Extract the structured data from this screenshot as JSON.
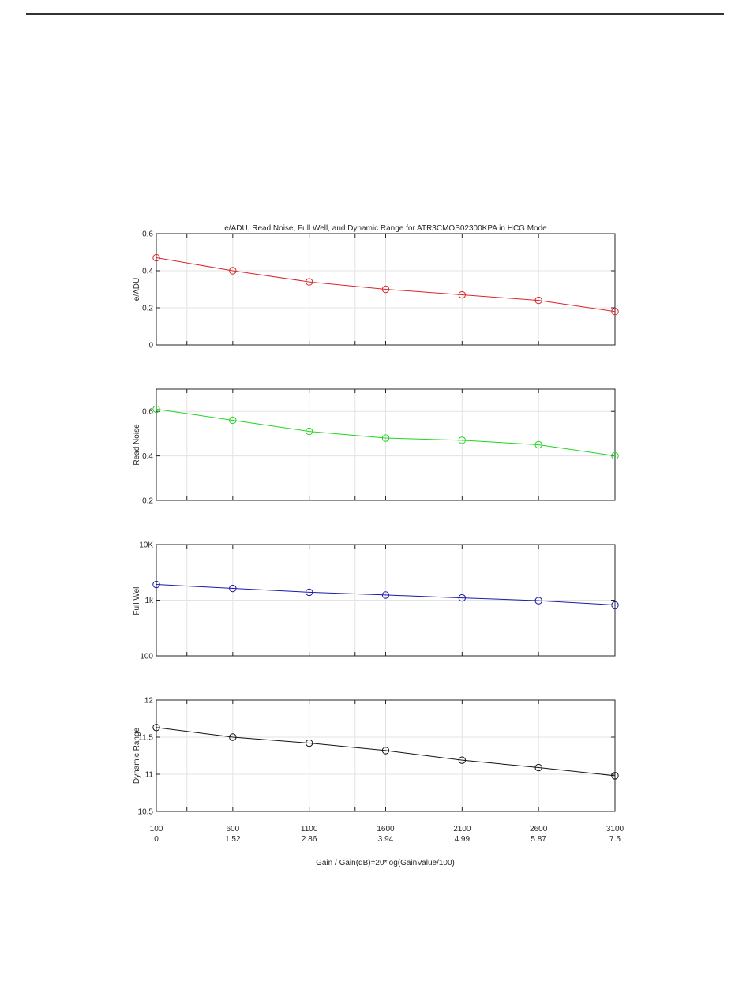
{
  "chart_data": {
    "type": "line",
    "title": "e/ADU, Read Noise, Full Well, and Dynamic Range for ATR3CMOS02300KPA in HCG Mode",
    "xlabel": "Gain / Gain(dB)=20*log(GainValue/100)",
    "x": [
      100,
      600,
      1100,
      1600,
      2100,
      2600,
      3100
    ],
    "x_tick_labels_gain": [
      "100",
      "600",
      "1100",
      "1600",
      "2100",
      "2600",
      "3100"
    ],
    "x_tick_labels_db": [
      "0",
      "1.52",
      "2.86",
      "3.94",
      "4.99",
      "5.87",
      "7.5"
    ],
    "grid": true,
    "panels": [
      {
        "ylabel": "e/ADU",
        "color": "#d9252a",
        "scale": "linear",
        "ylim": [
          0,
          0.6
        ],
        "yticks": [
          0,
          0.2,
          0.4,
          0.6
        ],
        "ytick_labels": [
          "0",
          "0.2",
          "0.4",
          "0.6"
        ],
        "values": [
          0.47,
          0.4,
          0.34,
          0.3,
          0.27,
          0.24,
          0.18
        ]
      },
      {
        "ylabel": "Read Noise",
        "color": "#1fd61f",
        "scale": "linear",
        "ylim": [
          0.2,
          0.7
        ],
        "yticks": [
          0.2,
          0.4,
          0.6
        ],
        "ytick_labels": [
          "0.2",
          "0.4",
          "0.6"
        ],
        "values": [
          0.61,
          0.56,
          0.51,
          0.48,
          0.47,
          0.45,
          0.4
        ]
      },
      {
        "ylabel": "Full Well",
        "color": "#1a1aa6",
        "scale": "log",
        "ylim": [
          100,
          10000
        ],
        "yticks": [
          100,
          1000,
          10000
        ],
        "ytick_labels": [
          "100",
          "1k",
          "10K"
        ],
        "values": [
          1920,
          1630,
          1390,
          1240,
          1100,
          980,
          820
        ]
      },
      {
        "ylabel": "Dynamic Range",
        "color": "#111111",
        "scale": "linear",
        "ylim": [
          10.5,
          12
        ],
        "yticks": [
          10.5,
          11,
          11.5,
          12
        ],
        "ytick_labels": [
          "10.5",
          "11",
          "11.5",
          "12"
        ],
        "values": [
          11.63,
          11.5,
          11.42,
          11.32,
          11.19,
          11.09,
          10.98
        ]
      }
    ]
  }
}
